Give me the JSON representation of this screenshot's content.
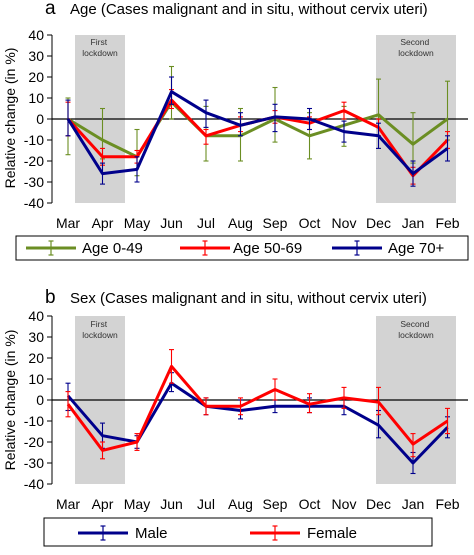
{
  "chart_data": [
    {
      "type": "line",
      "panel_letter": "a",
      "title": "Age (Cases malignant and in situ, without cervix uteri)",
      "ylabel": "Relative change (in %)",
      "xlabel": "",
      "categories": [
        "Mar",
        "Apr",
        "May",
        "Jun",
        "Jul",
        "Aug",
        "Sep",
        "Oct",
        "Nov",
        "Dec",
        "Jan",
        "Feb"
      ],
      "ylim": [
        -40,
        40
      ],
      "yticks": [
        40,
        30,
        20,
        10,
        0,
        -10,
        -20,
        -30,
        -40
      ],
      "reference_line": 0,
      "shaded_regions": [
        {
          "label": "First lockdown",
          "from": "Mar",
          "to": "Apr"
        },
        {
          "label": "Second lockdown",
          "from": "Dec",
          "to": "Feb"
        }
      ],
      "legend_position": "bottom",
      "series": [
        {
          "name": "Age 0-49",
          "color": "#6b8e23",
          "values": [
            0,
            -10,
            -18,
            8,
            -8,
            -8,
            0,
            -8,
            -3,
            2,
            -12,
            0
          ],
          "err_lo": [
            -17,
            -19,
            -27,
            0,
            -20,
            -20,
            -11,
            -19,
            -13,
            -8,
            -21,
            -10
          ],
          "err_hi": [
            10,
            5,
            -5,
            25,
            6,
            5,
            15,
            3,
            6,
            19,
            3,
            18
          ]
        },
        {
          "name": "Age 50-69",
          "color": "#ff0000",
          "values": [
            0,
            -18,
            -18,
            9,
            -8,
            -3,
            1,
            -2,
            4,
            -4,
            -27,
            -10
          ],
          "err_lo": [
            -8,
            -22,
            -21,
            5,
            -12,
            -6,
            -2,
            -5,
            0,
            -8,
            -31,
            -14
          ],
          "err_hi": [
            8,
            -14,
            -15,
            14,
            -5,
            1,
            4,
            1,
            8,
            0,
            -23,
            -6
          ]
        },
        {
          "name": "Age 70+",
          "color": "#00008b",
          "values": [
            0,
            -26,
            -24,
            13,
            3,
            -3,
            1,
            0,
            -6,
            -8,
            -26,
            -14
          ],
          "err_lo": [
            -8,
            -31,
            -30,
            7,
            -4,
            -8,
            -6,
            -5,
            -11,
            -14,
            -32,
            -20
          ],
          "err_hi": [
            9,
            -21,
            -18,
            20,
            9,
            3,
            7,
            5,
            -1,
            -2,
            -20,
            -8
          ]
        }
      ]
    },
    {
      "type": "line",
      "panel_letter": "b",
      "title": "Sex (Cases malignant and in situ, without cervix uteri)",
      "ylabel": "Relative change (in %)",
      "xlabel": "",
      "categories": [
        "Mar",
        "Apr",
        "May",
        "Jun",
        "Jul",
        "Aug",
        "Sep",
        "Oct",
        "Nov",
        "Dec",
        "Jan",
        "Feb"
      ],
      "ylim": [
        -40,
        40
      ],
      "yticks": [
        40,
        30,
        20,
        10,
        0,
        -10,
        -20,
        -30,
        -40
      ],
      "reference_line": 0,
      "shaded_regions": [
        {
          "label": "First lockdown",
          "from": "Mar",
          "to": "Apr"
        },
        {
          "label": "Second lockdown",
          "from": "Dec",
          "to": "Feb"
        }
      ],
      "legend_position": "bottom",
      "series": [
        {
          "name": "Male",
          "color": "#00008b",
          "values": [
            2,
            -17,
            -20,
            8,
            -3,
            -5,
            -3,
            -3,
            -3,
            -12,
            -30,
            -13
          ],
          "err_lo": [
            -5,
            -23,
            -23,
            4,
            -7,
            -9,
            -6,
            -6,
            -7,
            -18,
            -35,
            -18
          ],
          "err_hi": [
            8,
            -11,
            -17,
            13,
            1,
            0,
            0,
            1,
            1,
            -5,
            -25,
            -8
          ]
        },
        {
          "name": "Female",
          "color": "#ff0000",
          "values": [
            -2,
            -24,
            -20,
            16,
            -3,
            -3,
            5,
            -2,
            1,
            -1,
            -21,
            -10
          ],
          "err_lo": [
            -8,
            -28,
            -24,
            8,
            -7,
            -7,
            0,
            -6,
            -4,
            -7,
            -27,
            -16
          ],
          "err_hi": [
            4,
            -20,
            -16,
            24,
            1,
            1,
            10,
            3,
            6,
            6,
            -16,
            -4
          ]
        }
      ]
    }
  ]
}
